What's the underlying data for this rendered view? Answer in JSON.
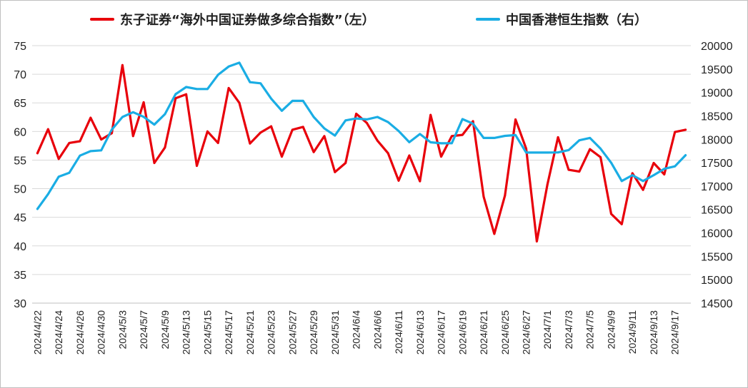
{
  "chart_data": {
    "type": "line",
    "legend_position": "top",
    "grid": true,
    "x": [
      "2024/4/22",
      "2024/4/23",
      "2024/4/24",
      "2024/4/25",
      "2024/4/26",
      "2024/4/29",
      "2024/4/30",
      "2024/5/2",
      "2024/5/3",
      "2024/5/6",
      "2024/5/7",
      "2024/5/8",
      "2024/5/9",
      "2024/5/10",
      "2024/5/13",
      "2024/5/14",
      "2024/5/15",
      "2024/5/16",
      "2024/5/17",
      "2024/5/20",
      "2024/5/21",
      "2024/5/22",
      "2024/5/23",
      "2024/5/24",
      "2024/5/27",
      "2024/5/28",
      "2024/5/29",
      "2024/5/30",
      "2024/5/31",
      "2024/6/3",
      "2024/6/4",
      "2024/6/5",
      "2024/6/6",
      "2024/6/7",
      "2024/6/11",
      "2024/6/12",
      "2024/6/13",
      "2024/6/14",
      "2024/6/17",
      "2024/6/18",
      "2024/6/19",
      "2024/6/20",
      "2024/6/21",
      "2024/6/24",
      "2024/6/25",
      "2024/6/26",
      "2024/6/27",
      "2024/6/28",
      "2024/7/1",
      "2024/7/2",
      "2024/7/3",
      "2024/7/4",
      "2024/7/5",
      "2024/9/6",
      "2024/9/9",
      "2024/9/10",
      "2024/9/11",
      "2024/9/12",
      "2024/9/13",
      "2024/9/16",
      "2024/9/17",
      "2024/9/18"
    ],
    "tick_labels": [
      "2024/4/22",
      "2024/4/24",
      "2024/4/26",
      "2024/4/30",
      "2024/5/3",
      "2024/5/7",
      "2024/5/9",
      "2024/5/13",
      "2024/5/15",
      "2024/5/17",
      "2024/5/21",
      "2024/5/23",
      "2024/5/27",
      "2024/5/29",
      "2024/5/31",
      "2024/6/4",
      "2024/6/6",
      "2024/6/11",
      "2024/6/13",
      "2024/6/17",
      "2024/6/19",
      "2024/6/21",
      "2024/6/25",
      "2024/6/27",
      "2024/7/1",
      "2024/7/3",
      "2024/7/5",
      "2024/9/9",
      "2024/9/11",
      "2024/9/13",
      "2024/9/17"
    ],
    "y_left": {
      "min": 30,
      "max": 75,
      "step": 5,
      "ticks": [
        "30",
        "35",
        "40",
        "45",
        "50",
        "55",
        "60",
        "65",
        "70",
        "75"
      ]
    },
    "y_right": {
      "min": 14500,
      "max": 20000,
      "step": 500,
      "ticks": [
        "14500",
        "15000",
        "15500",
        "16000",
        "16500",
        "17000",
        "17500",
        "18000",
        "18500",
        "19000",
        "19500",
        "20000"
      ]
    },
    "series": [
      {
        "name": "东子证券“海外中国证券做多综合指数”（左）",
        "axis": "left",
        "color": "#e8000b",
        "values": [
          56.2,
          60.4,
          55.2,
          58.0,
          58.3,
          62.4,
          58.6,
          59.7,
          71.6,
          59.2,
          65.1,
          54.5,
          57.2,
          65.8,
          66.5,
          54.0,
          60.0,
          58.0,
          67.6,
          65.0,
          57.9,
          59.8,
          60.9,
          55.6,
          60.3,
          60.8,
          56.4,
          59.2,
          52.9,
          54.5,
          63.1,
          61.5,
          58.4,
          56.2,
          51.4,
          55.8,
          51.3,
          62.9,
          55.6,
          59.2,
          59.4,
          61.8,
          48.6,
          42.1,
          48.8,
          62.1,
          57.0,
          40.8,
          50.7,
          59.0,
          53.3,
          53.0,
          56.9,
          55.5,
          45.6,
          43.8,
          52.7,
          49.8,
          54.5,
          52.5,
          59.9,
          60.3
        ]
      },
      {
        "name": "中国香港恒生指数（右）",
        "axis": "right",
        "color": "#1aade4",
        "values": [
          16512,
          16828,
          17201,
          17285,
          17651,
          17747,
          17763,
          18207,
          18476,
          18578,
          18479,
          18314,
          18538,
          18964,
          19116,
          19073,
          19073,
          19377,
          19553,
          19636,
          19220,
          19196,
          18868,
          18609,
          18821,
          18821,
          18477,
          18231,
          18079,
          18403,
          18444,
          18425,
          18476,
          18367,
          18177,
          17937,
          18112,
          17936,
          17915,
          17916,
          18430,
          18335,
          18028,
          18028,
          18072,
          18089,
          17716,
          17716,
          17716,
          17719,
          17769,
          17978,
          18028,
          17800,
          17499,
          17109,
          17234,
          17108,
          17234,
          17369,
          17422,
          17660
        ]
      }
    ]
  }
}
